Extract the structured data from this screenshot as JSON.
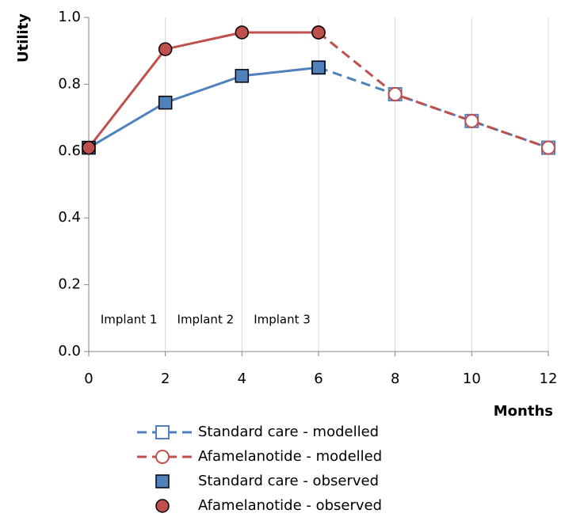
{
  "chart_data": {
    "type": "line",
    "y_label": "Utility",
    "x_label": "Months",
    "x": [
      0,
      2,
      4,
      6,
      8,
      10,
      12
    ],
    "xlim": [
      0,
      12
    ],
    "xticks": [
      0,
      2,
      4,
      6,
      8,
      10,
      12
    ],
    "ylim": [
      0,
      1
    ],
    "yticks": [
      {
        "value": 0,
        "label": "0.0"
      },
      0.2,
      0.4,
      0.6,
      0.8,
      {
        "value": 1,
        "label": "1.0"
      }
    ],
    "grid": "x",
    "series": [
      {
        "name": "Standard care - modelled",
        "color": "#4f81bd",
        "marker": "square",
        "filled": false,
        "linestyle": "dashed",
        "values": [
          null,
          null,
          null,
          0.85,
          0.77,
          0.69,
          0.61
        ]
      },
      {
        "name": "Afamelanotide - modelled",
        "color": "#c0504d",
        "marker": "circle",
        "filled": false,
        "linestyle": "dashed",
        "values": [
          null,
          null,
          null,
          0.955,
          0.77,
          0.69,
          0.61
        ]
      },
      {
        "name": "Standard care - observed",
        "color": "#4f81bd",
        "marker": "square",
        "filled": true,
        "linestyle": "solid",
        "values": [
          0.61,
          0.745,
          0.825,
          0.85,
          null,
          null,
          null
        ]
      },
      {
        "name": "Afamelanotide - observed",
        "color": "#c0504d",
        "marker": "circle",
        "filled": true,
        "linestyle": "solid",
        "values": [
          0.61,
          0.905,
          0.955,
          0.955,
          null,
          null,
          null
        ]
      }
    ],
    "annotations": [
      "Implant 1",
      "Implant 2",
      "Implant 3"
    ]
  }
}
